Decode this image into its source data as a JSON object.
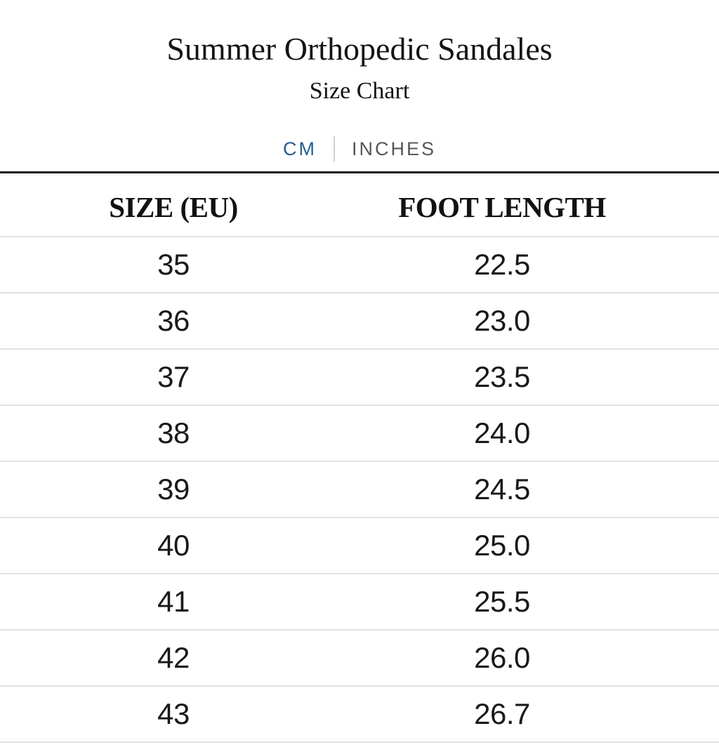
{
  "header": {
    "title": "Summer Orthopedic Sandales",
    "subtitle": "Size Chart"
  },
  "unit_toggle": {
    "cm_label": "CM",
    "inches_label": "INCHES",
    "selected": "CM",
    "selected_color": "#245e92",
    "unselected_color": "#54585b"
  },
  "chart_data": {
    "type": "table",
    "title": "Summer Orthopedic Sandales Size Chart",
    "unit": "CM",
    "columns": [
      "SIZE (EU)",
      "FOOT LENGTH"
    ],
    "rows": [
      [
        "35",
        "22.5"
      ],
      [
        "36",
        "23.0"
      ],
      [
        "37",
        "23.5"
      ],
      [
        "38",
        "24.0"
      ],
      [
        "39",
        "24.5"
      ],
      [
        "40",
        "25.0"
      ],
      [
        "41",
        "25.5"
      ],
      [
        "42",
        "26.0"
      ],
      [
        "43",
        "26.7"
      ]
    ]
  }
}
